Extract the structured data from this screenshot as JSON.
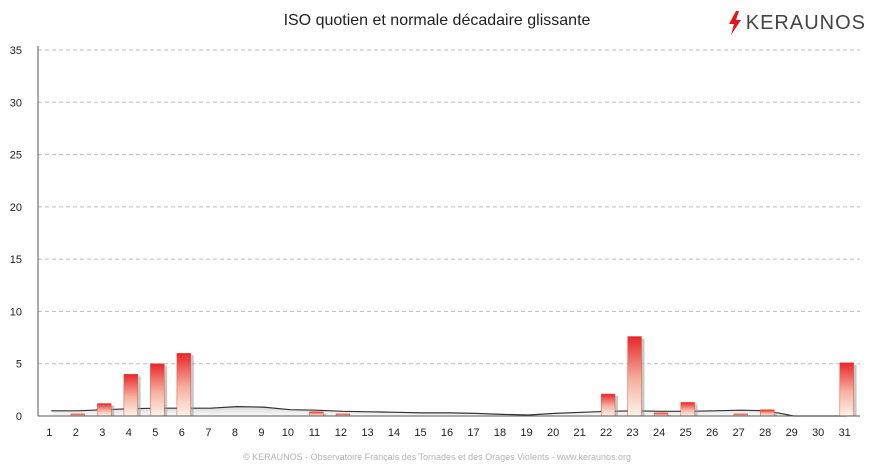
{
  "brand": {
    "name": "KERAUNOS",
    "accent_color": "#e3161b",
    "icon": "lightning-icon"
  },
  "footer": {
    "text": "© KERAUNOS - Observatoire Français des Tornades et des Orages Violents - www.keraunos.org"
  },
  "chart_data": {
    "type": "bar",
    "title": "ISO quotien et normale décadaire glissante",
    "xlabel": "",
    "ylabel": "",
    "ylim": [
      0,
      35
    ],
    "yticks": [
      0,
      5,
      10,
      15,
      20,
      25,
      30,
      35
    ],
    "grid": true,
    "legend": "none",
    "categories": [
      "1",
      "2",
      "3",
      "4",
      "5",
      "6",
      "7",
      "8",
      "9",
      "10",
      "11",
      "12",
      "13",
      "14",
      "15",
      "16",
      "17",
      "18",
      "19",
      "20",
      "21",
      "22",
      "23",
      "24",
      "25",
      "26",
      "27",
      "28",
      "29",
      "30",
      "31"
    ],
    "series": [
      {
        "type": "bar",
        "color": "#e8262b",
        "values": [
          0,
          0.2,
          1.2,
          4.0,
          5.0,
          6.0,
          0,
          0,
          0,
          0,
          0.4,
          0.2,
          0,
          0,
          0,
          0,
          0,
          0,
          0,
          0,
          0,
          2.1,
          7.6,
          0.3,
          1.3,
          0,
          0.2,
          0.6,
          0,
          0,
          5.1
        ]
      },
      {
        "type": "area",
        "color": "#333333",
        "values": [
          0.5,
          0.5,
          0.6,
          0.7,
          0.75,
          0.75,
          0.75,
          0.9,
          0.85,
          0.6,
          0.55,
          0.45,
          0.4,
          0.35,
          0.3,
          0.3,
          0.25,
          0.15,
          0.1,
          0.25,
          0.35,
          0.45,
          0.5,
          0.45,
          0.45,
          0.5,
          0.55,
          0.5,
          0.0,
          0.0,
          0.0
        ]
      }
    ]
  }
}
